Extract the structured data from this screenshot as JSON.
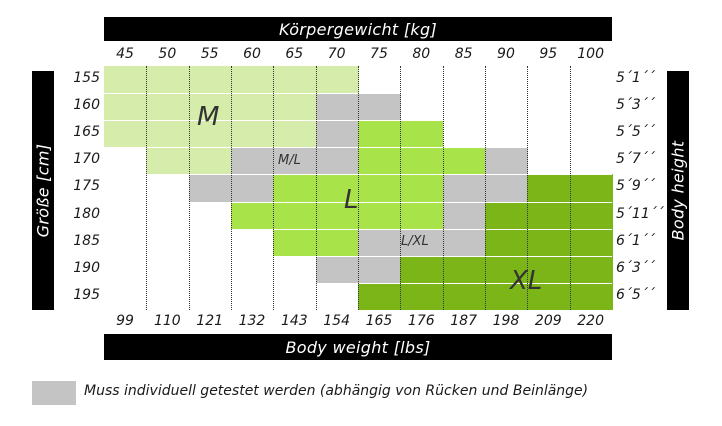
{
  "chart_data": {
    "type": "heatmap",
    "title": "Körpergewicht [kg]",
    "xlabel_bottom": "Body weight [lbs]",
    "ylabel_left": "Größe [cm]",
    "ylabel_right": "Body height",
    "x_kg": [
      "45",
      "50",
      "55",
      "60",
      "65",
      "70",
      "75",
      "80",
      "85",
      "90",
      "95",
      "100"
    ],
    "x_lbs": [
      "99",
      "110",
      "121",
      "132",
      "143",
      "154",
      "165",
      "176",
      "187",
      "198",
      "209",
      "220"
    ],
    "y_cm": [
      "155",
      "160",
      "165",
      "170",
      "175",
      "180",
      "185",
      "190",
      "195"
    ],
    "y_ft": [
      "5´1´´",
      "5´3´´",
      "5´5´´",
      "5´7´´",
      "5´9´´",
      "5´11´´",
      "6´1´´",
      "6´3´´",
      "6´5´´"
    ],
    "size_labels": {
      "M": "M",
      "ML": "M/L",
      "L": "L",
      "LXL": "L/XL",
      "XL": "XL"
    },
    "grid": [
      [
        "M",
        "M",
        "M",
        "M",
        "M",
        "M",
        "",
        "",
        "",
        "",
        "",
        ""
      ],
      [
        "M",
        "M",
        "M",
        "M",
        "M",
        "G",
        "G",
        "",
        "",
        "",
        "",
        ""
      ],
      [
        "M",
        "M",
        "M",
        "M",
        "M",
        "G",
        "L",
        "L",
        "",
        "",
        "",
        ""
      ],
      [
        "",
        "M",
        "M",
        "G",
        "G",
        "G",
        "L",
        "L",
        "L",
        "G",
        "",
        ""
      ],
      [
        "",
        "",
        "G",
        "G",
        "L",
        "L",
        "L",
        "L",
        "G",
        "G",
        "X",
        "X"
      ],
      [
        "",
        "",
        "",
        "L",
        "L",
        "L",
        "L",
        "L",
        "G",
        "X",
        "X",
        "X"
      ],
      [
        "",
        "",
        "",
        "",
        "L",
        "L",
        "G",
        "G",
        "G",
        "X",
        "X",
        "X"
      ],
      [
        "",
        "",
        "",
        "",
        "",
        "G",
        "G",
        "X",
        "X",
        "X",
        "X",
        "X"
      ],
      [
        "",
        "",
        "",
        "",
        "",
        "",
        "X",
        "X",
        "X",
        "X",
        "X",
        "X"
      ]
    ],
    "colors": {
      "M": "#d6ecaa",
      "L": "#a8e34a",
      "X": "#7cb518",
      "G": "#c4c4c4"
    }
  },
  "legend": {
    "text": "Muss individuell getestet werden (abhängig von Rücken und Beinlänge)",
    "swatch_color": "#c4c4c4"
  }
}
